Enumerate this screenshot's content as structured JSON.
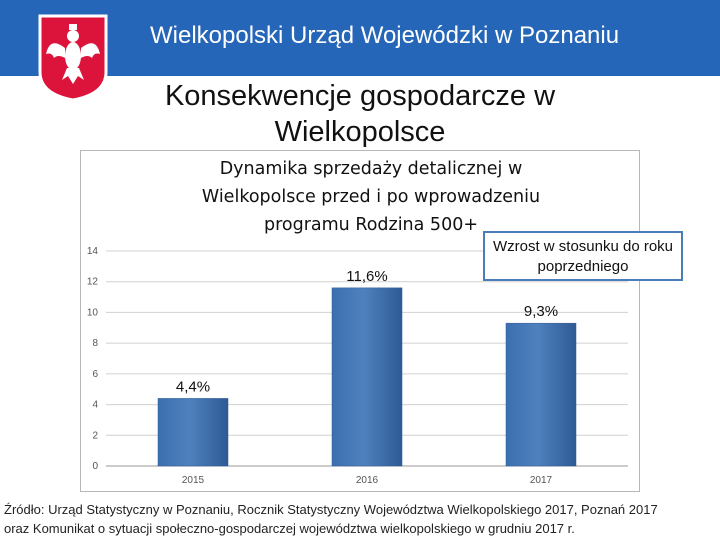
{
  "header": {
    "title": "Wielkopolski Urząd Wojewódzki w Poznaniu"
  },
  "page": {
    "title_line1": "Konsekwencje gospodarcze w",
    "title_line2": "Wielkopolsce"
  },
  "chart_data": {
    "type": "bar",
    "title_lines": [
      "Dynamika sprzedaży detalicznej w",
      "Wielkopolsce przed i po wprowadzeniu",
      "programu Rodzina 500+"
    ],
    "categories": [
      "2015",
      "2016",
      "2017"
    ],
    "values": [
      4.4,
      11.6,
      9.3
    ],
    "data_labels": [
      "4,4%",
      "11,6%",
      "9,3%"
    ],
    "yticks": [
      0,
      2,
      4,
      6,
      8,
      10,
      12,
      14
    ],
    "ylim": [
      0,
      14
    ],
    "grid": true,
    "annotation": "Wzrost w stosunku do roku poprzedniego",
    "bar_color": "#4f81bd"
  },
  "source": {
    "line1": "Źródło: Urząd Statystyczny w Poznaniu, Rocznik Statystyczny Województwa Wielkopolskiego 2017, Poznań 2017",
    "line2": "oraz Komunikat o sytuacji społeczno-gospodarczej województwa wielkopolskiego w grudniu 2017 r."
  },
  "colors": {
    "header_bg": "#2566b8",
    "emblem_red": "#dc143c"
  }
}
